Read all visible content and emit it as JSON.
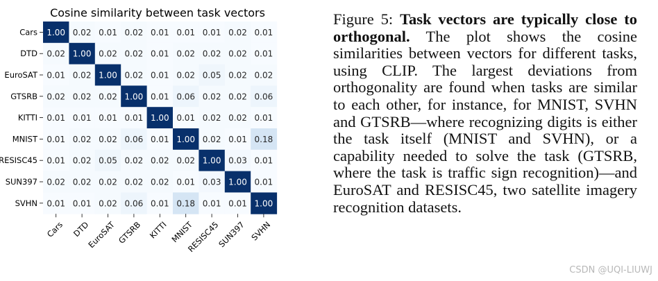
{
  "chart_data": {
    "type": "heatmap",
    "title": "Cosine similarity between task vectors",
    "categories": [
      "Cars",
      "DTD",
      "EuroSAT",
      "GTSRB",
      "KITTI",
      "MNIST",
      "RESISC45",
      "SUN397",
      "SVHN"
    ],
    "values": [
      [
        1.0,
        0.02,
        0.01,
        0.02,
        0.01,
        0.01,
        0.01,
        0.02,
        0.01
      ],
      [
        0.02,
        1.0,
        0.02,
        0.02,
        0.01,
        0.02,
        0.02,
        0.02,
        0.01
      ],
      [
        0.01,
        0.02,
        1.0,
        0.02,
        0.01,
        0.02,
        0.05,
        0.02,
        0.02
      ],
      [
        0.02,
        0.02,
        0.02,
        1.0,
        0.01,
        0.06,
        0.02,
        0.02,
        0.06
      ],
      [
        0.01,
        0.01,
        0.01,
        0.01,
        1.0,
        0.01,
        0.02,
        0.02,
        0.01
      ],
      [
        0.01,
        0.02,
        0.02,
        0.06,
        0.01,
        1.0,
        0.02,
        0.01,
        0.18
      ],
      [
        0.01,
        0.02,
        0.05,
        0.02,
        0.02,
        0.02,
        1.0,
        0.03,
        0.01
      ],
      [
        0.02,
        0.02,
        0.02,
        0.02,
        0.02,
        0.01,
        0.03,
        1.0,
        0.01
      ],
      [
        0.01,
        0.01,
        0.02,
        0.06,
        0.01,
        0.18,
        0.01,
        0.01,
        1.0
      ]
    ],
    "value_format": "2 decimals",
    "colormap": "Blues",
    "colors": {
      "low": "#f7fbff",
      "high": "#08306b"
    }
  },
  "caption": {
    "label": "Figure 5:",
    "bold": "Task vectors are typically close to orthogonal.",
    "body": "The plot shows the cosine similarities between vectors for different tasks, using CLIP. The largest deviations from orthogonality are found when tasks are similar to each other, for instance, for MNIST, SVHN and GTSRB—where recognizing digits is either the task itself (MNIST and SVHN), or a capability needed to solve the task (GTSRB, where the task is traffic sign recognition)—and EuroSAT and RESISC45, two satellite imagery recognition datasets."
  },
  "watermark": "CSDN @UQI-LIUWJ"
}
